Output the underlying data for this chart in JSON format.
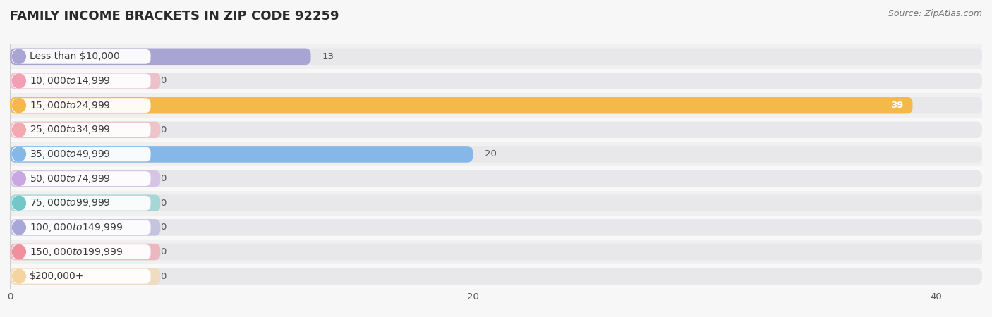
{
  "title": "FAMILY INCOME BRACKETS IN ZIP CODE 92259",
  "source": "Source: ZipAtlas.com",
  "categories": [
    "Less than $10,000",
    "$10,000 to $14,999",
    "$15,000 to $24,999",
    "$25,000 to $34,999",
    "$35,000 to $49,999",
    "$50,000 to $74,999",
    "$75,000 to $99,999",
    "$100,000 to $149,999",
    "$150,000 to $199,999",
    "$200,000+"
  ],
  "values": [
    13,
    0,
    39,
    0,
    20,
    0,
    0,
    0,
    0,
    0
  ],
  "bar_colors": [
    "#a8a4d4",
    "#f4a0b4",
    "#f5b84a",
    "#f4a8b0",
    "#85b8e8",
    "#c8a8e0",
    "#72c8c8",
    "#a8a8d8",
    "#f0909c",
    "#f5d4a0"
  ],
  "bg_color": "#f7f7f7",
  "bar_bg_color": "#e8e8ea",
  "row_bg_colors": [
    "#f0f0f0",
    "#f8f8f8"
  ],
  "xlim": [
    0,
    42
  ],
  "xticks": [
    0,
    20,
    40
  ],
  "title_fontsize": 13,
  "label_fontsize": 10,
  "value_fontsize": 9.5,
  "source_fontsize": 9
}
